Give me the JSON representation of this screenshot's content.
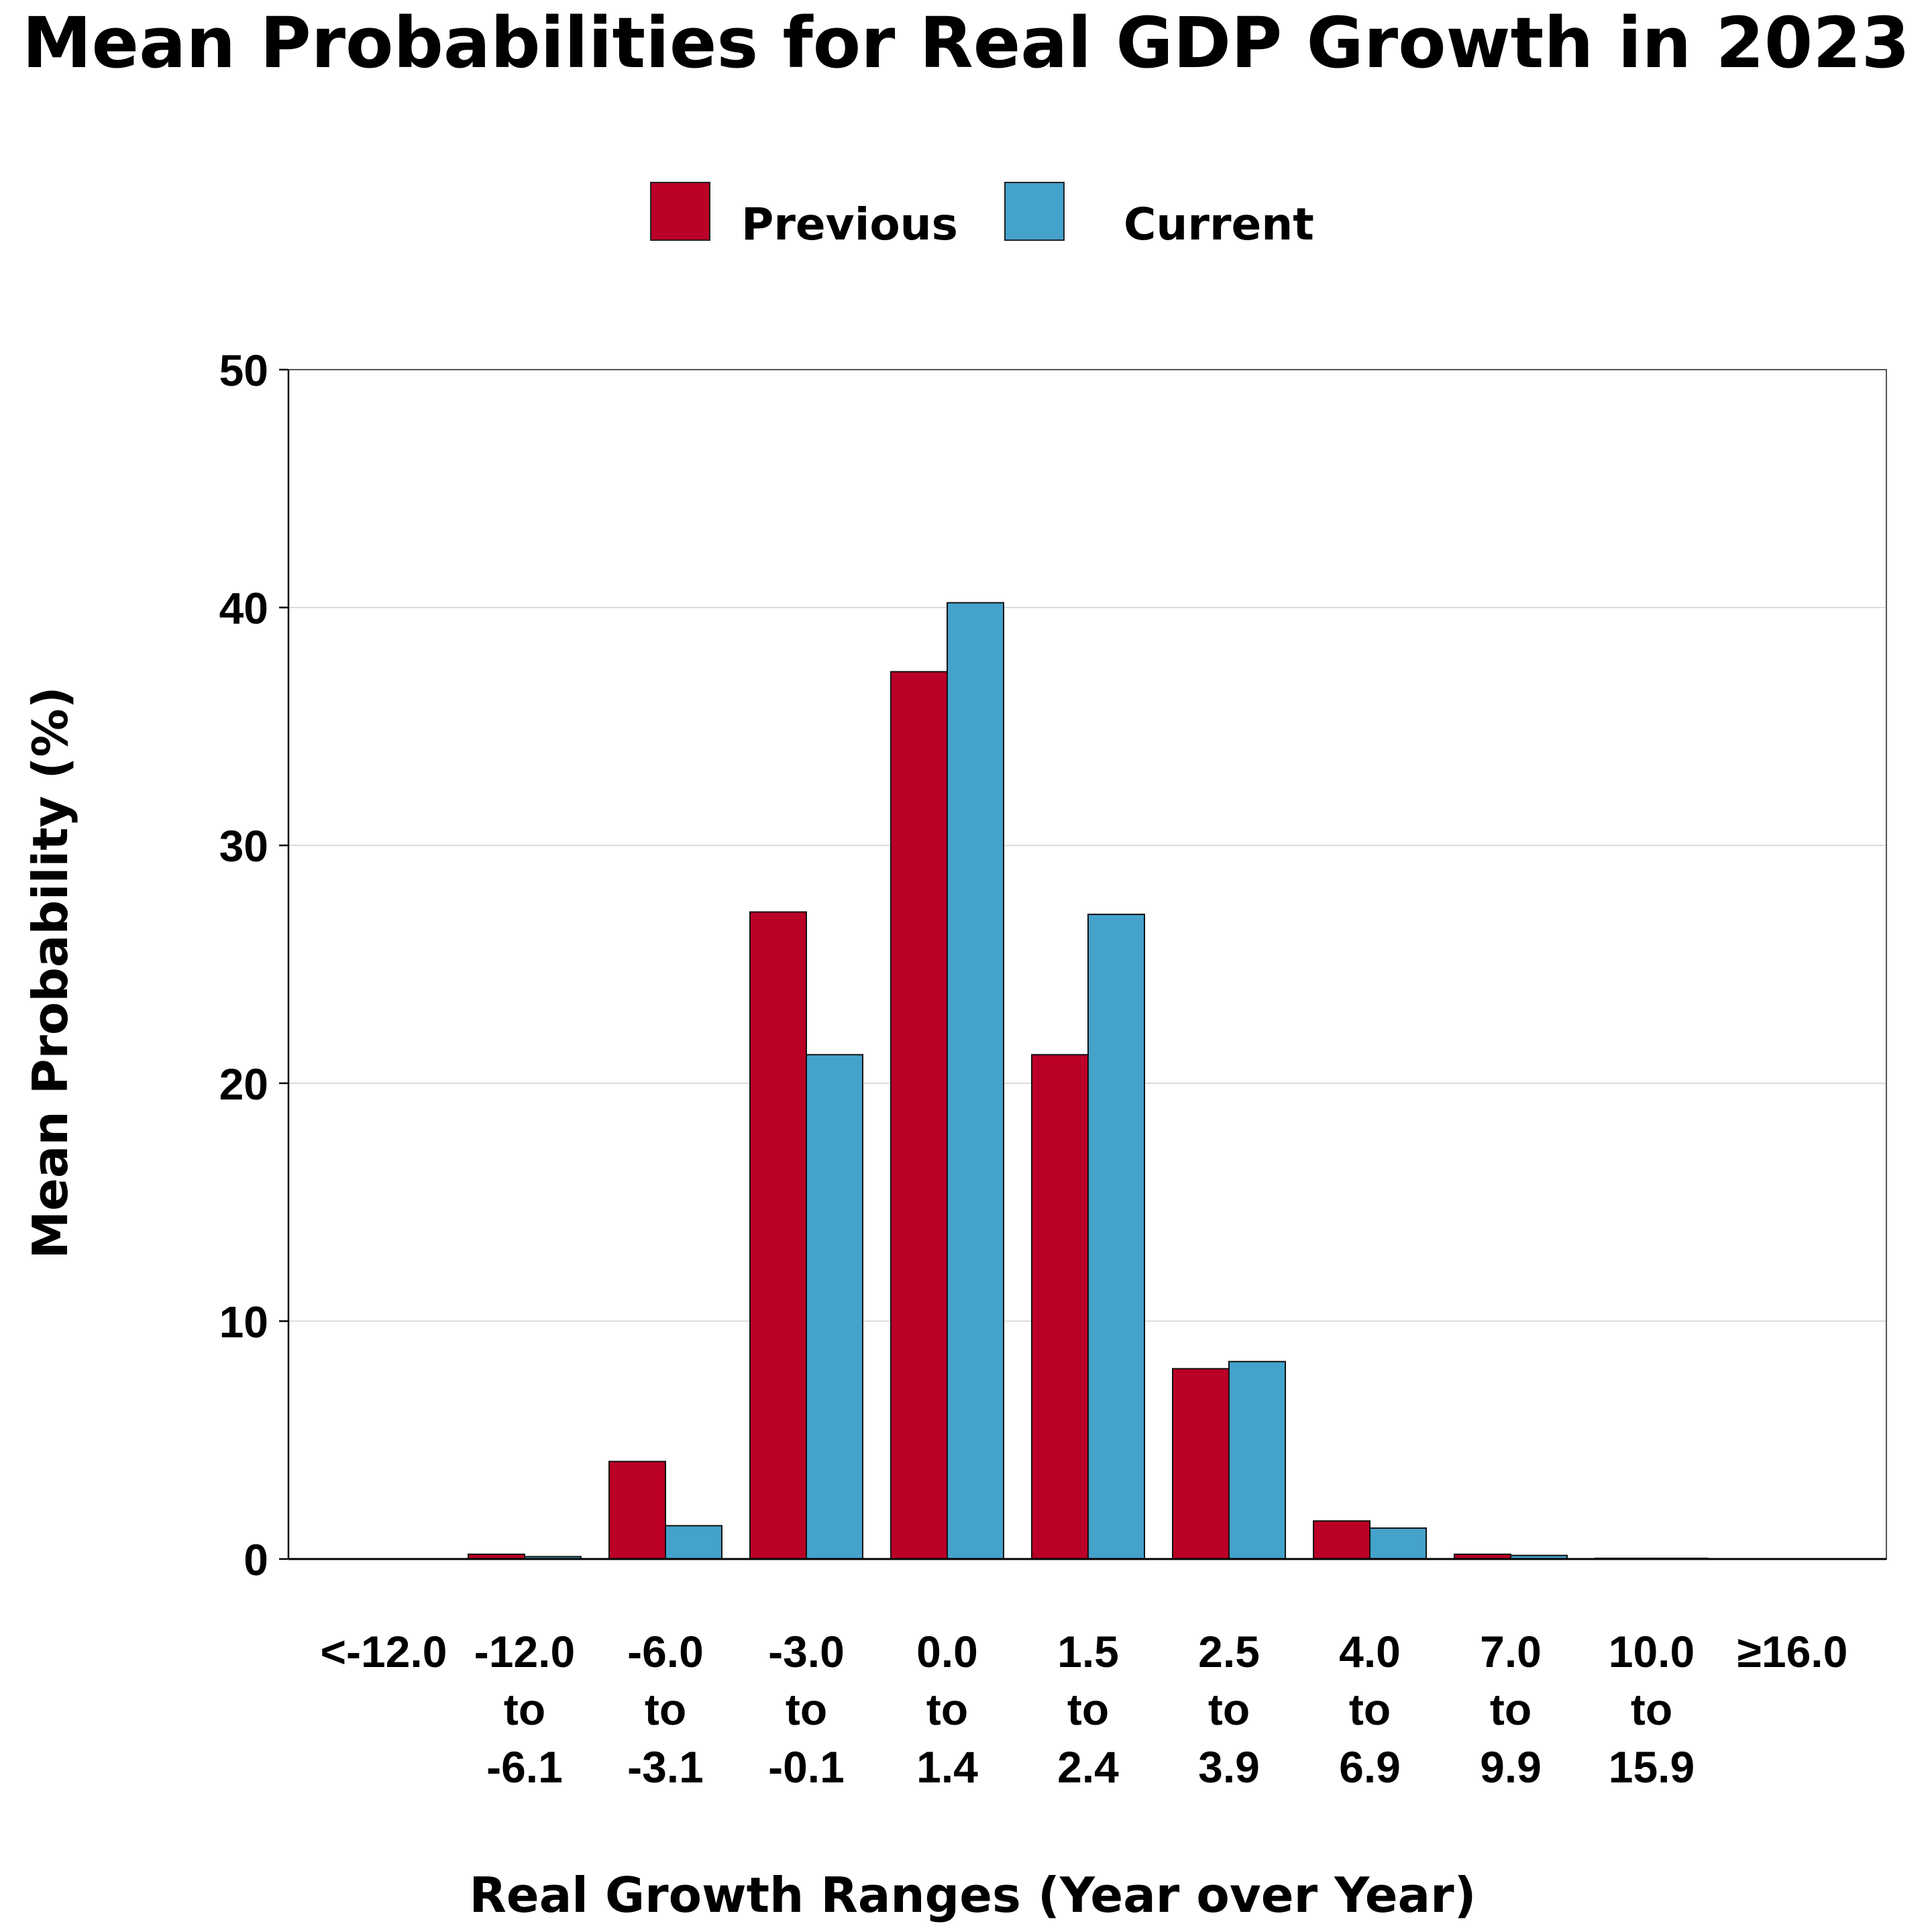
{
  "chart_data": {
    "type": "bar",
    "title": "Mean Probabilities for Real GDP Growth in 2023",
    "xlabel": "Real Growth Ranges (Year over Year)",
    "ylabel": "Mean Probability (%)",
    "ylim": [
      0,
      50
    ],
    "yticks": [
      0,
      10,
      20,
      30,
      40,
      50
    ],
    "grid": true,
    "legend_position": "top-center",
    "categories": [
      [
        "<-12.0"
      ],
      [
        "-12.0",
        "to",
        "-6.1"
      ],
      [
        "-6.0",
        "to",
        "-3.1"
      ],
      [
        "-3.0",
        "to",
        "-0.1"
      ],
      [
        "0.0",
        "to",
        "1.4"
      ],
      [
        "1.5",
        "to",
        "2.4"
      ],
      [
        "2.5",
        "to",
        "3.9"
      ],
      [
        "4.0",
        "to",
        "6.9"
      ],
      [
        "7.0",
        "to",
        "9.9"
      ],
      [
        "10.0",
        "to",
        "15.9"
      ],
      [
        "≥16.0"
      ]
    ],
    "series": [
      {
        "name": "Previous",
        "color": "#BB0027",
        "values": [
          0.0,
          0.2,
          4.1,
          27.2,
          37.3,
          21.2,
          8.0,
          1.6,
          0.2,
          0.03,
          0.0
        ]
      },
      {
        "name": "Current",
        "color": "#44A2CB",
        "values": [
          0.0,
          0.1,
          1.4,
          21.2,
          40.2,
          27.1,
          8.3,
          1.3,
          0.15,
          0.03,
          0.0
        ]
      }
    ]
  }
}
